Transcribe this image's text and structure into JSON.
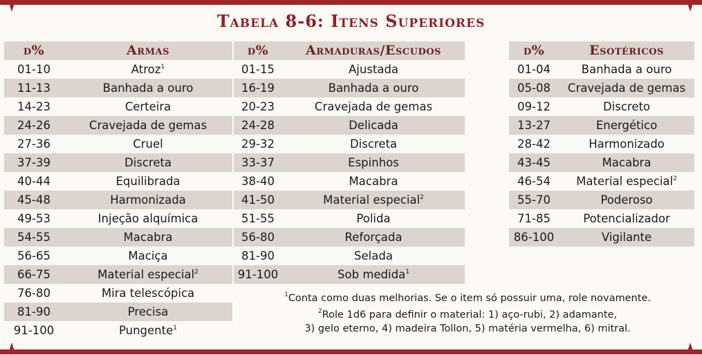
{
  "title": "Tabela 8-6: Itens Superiores",
  "colors": {
    "accent": "#8e2127",
    "border": "#a0262a",
    "shade": "#dcd4ce",
    "background": "#fdfaf6"
  },
  "armas": {
    "header_roll": "d%",
    "header_name": "Armas",
    "rows": [
      {
        "roll": "01-10",
        "name": "Atroz",
        "note": "1"
      },
      {
        "roll": "11-13",
        "name": "Banhada a ouro",
        "note": ""
      },
      {
        "roll": "14-23",
        "name": "Certeira",
        "note": ""
      },
      {
        "roll": "24-26",
        "name": "Cravejada de gemas",
        "note": ""
      },
      {
        "roll": "27-36",
        "name": "Cruel",
        "note": ""
      },
      {
        "roll": "37-39",
        "name": "Discreta",
        "note": ""
      },
      {
        "roll": "40-44",
        "name": "Equilibrada",
        "note": ""
      },
      {
        "roll": "45-48",
        "name": "Harmonizada",
        "note": ""
      },
      {
        "roll": "49-53",
        "name": "Injeção alquímica",
        "note": ""
      },
      {
        "roll": "54-55",
        "name": "Macabra",
        "note": ""
      },
      {
        "roll": "56-65",
        "name": "Maciça",
        "note": ""
      },
      {
        "roll": "66-75",
        "name": "Material especial",
        "note": "2"
      },
      {
        "roll": "76-80",
        "name": "Mira telescópica",
        "note": ""
      },
      {
        "roll": "81-90",
        "name": "Precisa",
        "note": ""
      },
      {
        "roll": "91-100",
        "name": "Pungente",
        "note": "1"
      }
    ]
  },
  "armaduras": {
    "header_roll": "d%",
    "header_name": "Armaduras/Escudos",
    "rows": [
      {
        "roll": "01-15",
        "name": "Ajustada",
        "note": ""
      },
      {
        "roll": "16-19",
        "name": "Banhada a ouro",
        "note": ""
      },
      {
        "roll": "20-23",
        "name": "Cravejada de gemas",
        "note": ""
      },
      {
        "roll": "24-28",
        "name": "Delicada",
        "note": ""
      },
      {
        "roll": "29-32",
        "name": "Discreta",
        "note": ""
      },
      {
        "roll": "33-37",
        "name": "Espinhos",
        "note": ""
      },
      {
        "roll": "38-40",
        "name": "Macabra",
        "note": ""
      },
      {
        "roll": "41-50",
        "name": "Material especial",
        "note": "2"
      },
      {
        "roll": "51-55",
        "name": "Polida",
        "note": ""
      },
      {
        "roll": "56-80",
        "name": "Reforçada",
        "note": ""
      },
      {
        "roll": "81-90",
        "name": "Selada",
        "note": ""
      },
      {
        "roll": "91-100",
        "name": "Sob medida",
        "note": "1"
      }
    ]
  },
  "esotericos": {
    "header_roll": "d%",
    "header_name": "Esotéricos",
    "rows": [
      {
        "roll": "01-04",
        "name": "Banhada a ouro",
        "note": ""
      },
      {
        "roll": "05-08",
        "name": "Cravejada de gemas",
        "note": ""
      },
      {
        "roll": "09-12",
        "name": "Discreto",
        "note": ""
      },
      {
        "roll": "13-27",
        "name": "Energético",
        "note": ""
      },
      {
        "roll": "28-42",
        "name": "Harmonizado",
        "note": ""
      },
      {
        "roll": "43-45",
        "name": "Macabra",
        "note": ""
      },
      {
        "roll": "46-54",
        "name": "Material especial",
        "note": "2"
      },
      {
        "roll": "55-70",
        "name": "Poderoso",
        "note": ""
      },
      {
        "roll": "71-85",
        "name": "Potencializador",
        "note": ""
      },
      {
        "roll": "86-100",
        "name": "Vigilante",
        "note": ""
      }
    ]
  },
  "footnotes": {
    "note1_mark": "1",
    "note1": "Conta como duas melhorias. Se o item só possuir uma, role novamente.",
    "note2_mark": "2",
    "note2_line1": "Role 1d6 para definir o material: 1) aço-rubi, 2) adamante,",
    "note2_line2": "3) gelo eterno, 4) madeira Tollon, 5) matéria vermelha, 6) mitral."
  }
}
